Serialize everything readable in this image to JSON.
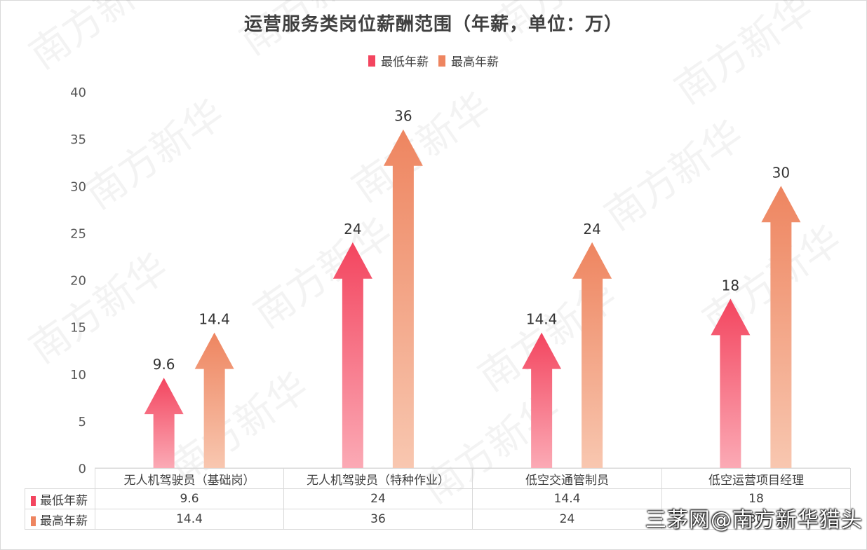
{
  "chart_data": {
    "type": "bar",
    "title": "运营服务类岗位薪酬范围（年薪，单位：万）",
    "categories": [
      "无人机驾驶员（基础岗）",
      "无人机驾驶员（特种作业）",
      "低空交通管制员",
      "低空运营项目经理"
    ],
    "series": [
      {
        "name": "最低年薪",
        "values": [
          9.6,
          24,
          14.4,
          18
        ],
        "color": "#f3455f",
        "color_light": "#fbaab5"
      },
      {
        "name": "最高年薪",
        "values": [
          14.4,
          36,
          24,
          30
        ],
        "color": "#ee8560",
        "color_light": "#f8c7b0"
      }
    ],
    "ylim": [
      0,
      40
    ],
    "yticks": [
      0,
      5,
      10,
      15,
      20,
      25,
      30,
      35,
      40
    ],
    "legend": "top-center",
    "grid": false,
    "data_table": true
  },
  "watermark": "三茅网@南方新华猎头",
  "background_watermark": "南方新华"
}
